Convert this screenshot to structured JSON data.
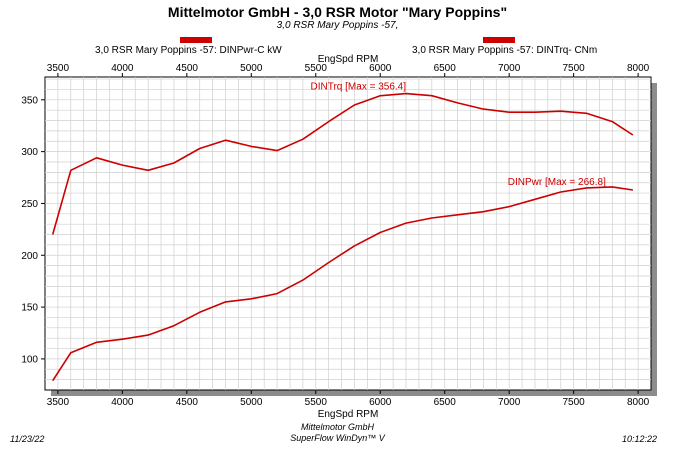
{
  "header": {
    "title": "Mittelmotor GmbH - 3,0 RSR Motor \"Mary Poppins\"",
    "subtitle": "3,0 RSR Mary Poppins -57,"
  },
  "legend": {
    "power_label": "3,0 RSR Mary Poppins -57: DINPwr-C kW",
    "torque_label": "3,0 RSR Mary Poppins -57: DINTrq- CNm",
    "color": "#cc0000"
  },
  "footer": {
    "date": "11/23/22",
    "company": "Mittelmotor GmbH",
    "software": "SuperFlow WinDyn™ V",
    "time": "10:12:22"
  },
  "chart_data": {
    "type": "line",
    "xlabel": "EngSpd  RPM",
    "ylabel": "",
    "xlim": [
      3400,
      8100
    ],
    "ylim": [
      70,
      372
    ],
    "x_ticks": [
      3500,
      4000,
      4500,
      5000,
      5500,
      6000,
      6500,
      7000,
      7500,
      8000
    ],
    "y_ticks": [
      100,
      150,
      200,
      250,
      300,
      350
    ],
    "x_tick_labels_top": [
      "3500",
      "4000",
      "4500",
      "5000",
      "5500",
      "6000",
      "6500",
      "7000",
      "7500",
      "8000"
    ],
    "x_tick_labels_bottom": [
      "3500",
      "4000",
      "4500",
      "5000",
      "5500",
      "6000",
      "6500",
      "7000",
      "7500",
      "8000"
    ],
    "y_tick_labels": [
      "100",
      "150",
      "200",
      "250",
      "300",
      "350"
    ],
    "grid": true,
    "line_color": "#cc0000",
    "series": [
      {
        "name": "DINTrq",
        "annotation": "DINTrq [Max = 356.4]",
        "annotation_at": [
          6200,
          357
        ],
        "x": [
          3460,
          3600,
          3800,
          4000,
          4200,
          4400,
          4600,
          4800,
          5000,
          5200,
          5400,
          5600,
          5800,
          6000,
          6200,
          6400,
          6600,
          6800,
          7000,
          7200,
          7400,
          7600,
          7800,
          7960
        ],
        "values": [
          220,
          282,
          294,
          287,
          282,
          289,
          303,
          311,
          305,
          301,
          312,
          329,
          345,
          354,
          356,
          354,
          347,
          341,
          338,
          338,
          339,
          337,
          329,
          316
        ]
      },
      {
        "name": "DINPwr",
        "annotation": "DINPwr [Max = 266.8]",
        "annotation_at": [
          7750,
          265
        ],
        "x": [
          3460,
          3600,
          3800,
          4000,
          4200,
          4400,
          4600,
          4800,
          5000,
          5200,
          5400,
          5600,
          5800,
          6000,
          6200,
          6400,
          6600,
          6800,
          7000,
          7200,
          7400,
          7600,
          7800,
          7960
        ],
        "values": [
          79,
          106,
          116,
          119,
          123,
          132,
          145,
          155,
          158,
          163,
          176,
          193,
          209,
          222,
          231,
          236,
          239,
          242,
          247,
          254,
          261,
          265,
          266,
          263
        ]
      }
    ]
  }
}
